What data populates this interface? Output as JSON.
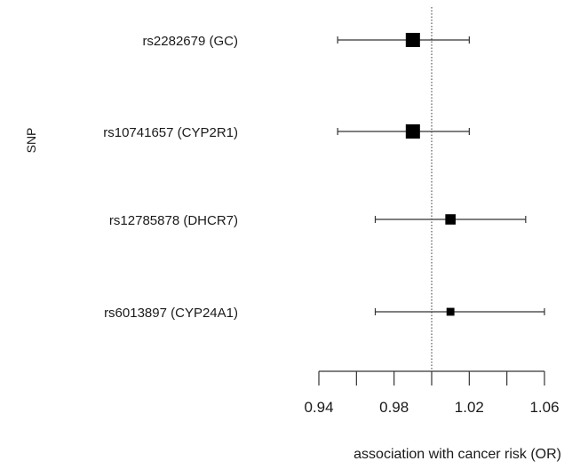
{
  "chart_data": {
    "type": "forest",
    "ylabel": "SNP",
    "xlabel": "association with cancer risk (OR)",
    "xlim": [
      0.94,
      1.06
    ],
    "xticks": [
      0.94,
      0.98,
      1.02,
      1.06
    ],
    "xticks_minor": [
      0.94,
      0.96,
      0.98,
      1.0,
      1.02,
      1.04,
      1.06
    ],
    "reference_line": 1.0,
    "rows": [
      {
        "label": "rs2282679 (GC)",
        "or": 0.99,
        "lower": 0.95,
        "upper": 1.02,
        "weight": 1.0
      },
      {
        "label": "rs10741657 (CYP2R1)",
        "or": 0.99,
        "lower": 0.95,
        "upper": 1.02,
        "weight": 1.0
      },
      {
        "label": "rs12785878 (DHCR7)",
        "or": 1.01,
        "lower": 0.97,
        "upper": 1.05,
        "weight": 0.6
      },
      {
        "label": "rs6013897 (CYP24A1)",
        "or": 1.01,
        "lower": 0.97,
        "upper": 1.06,
        "weight": 0.35
      }
    ],
    "colors": {
      "marker": "#000000",
      "line": "#333333"
    }
  }
}
